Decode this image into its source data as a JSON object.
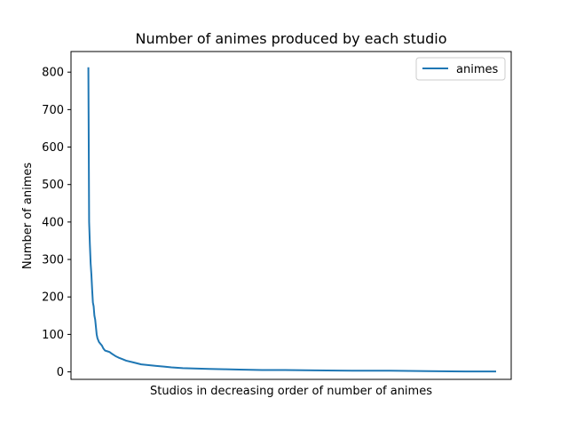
{
  "chart_data": {
    "type": "line",
    "title": "Number of animes produced by each studio",
    "xlabel": "Studios in decreasing order of number of animes",
    "ylabel": "Number of animes",
    "ylim": [
      -20,
      855
    ],
    "xlim": [
      -23,
      560
    ],
    "yticks": [
      0,
      100,
      200,
      300,
      400,
      500,
      600,
      700,
      800
    ],
    "xticks_visible": false,
    "grid": false,
    "legend": {
      "position": "top-right",
      "entries": [
        "animes"
      ]
    },
    "series": [
      {
        "name": "animes",
        "color": "#1f77b4",
        "x": [
          0,
          1,
          2,
          3,
          4,
          5,
          6,
          7,
          8,
          9,
          10,
          11,
          12,
          14,
          16,
          18,
          20,
          22,
          25,
          28,
          30,
          33,
          36,
          40,
          45,
          50,
          60,
          70,
          80,
          90,
          100,
          110,
          125,
          140,
          160,
          180,
          200,
          230,
          260,
          300,
          350,
          400,
          450,
          500,
          540
        ],
        "values": [
          813,
          400,
          340,
          290,
          260,
          220,
          185,
          175,
          150,
          140,
          120,
          100,
          90,
          80,
          75,
          70,
          62,
          57,
          55,
          53,
          50,
          46,
          42,
          38,
          34,
          30,
          25,
          20,
          18,
          16,
          14,
          12,
          10,
          9,
          8,
          7,
          6,
          5,
          5,
          4,
          3,
          3,
          2,
          1,
          1
        ]
      }
    ]
  }
}
